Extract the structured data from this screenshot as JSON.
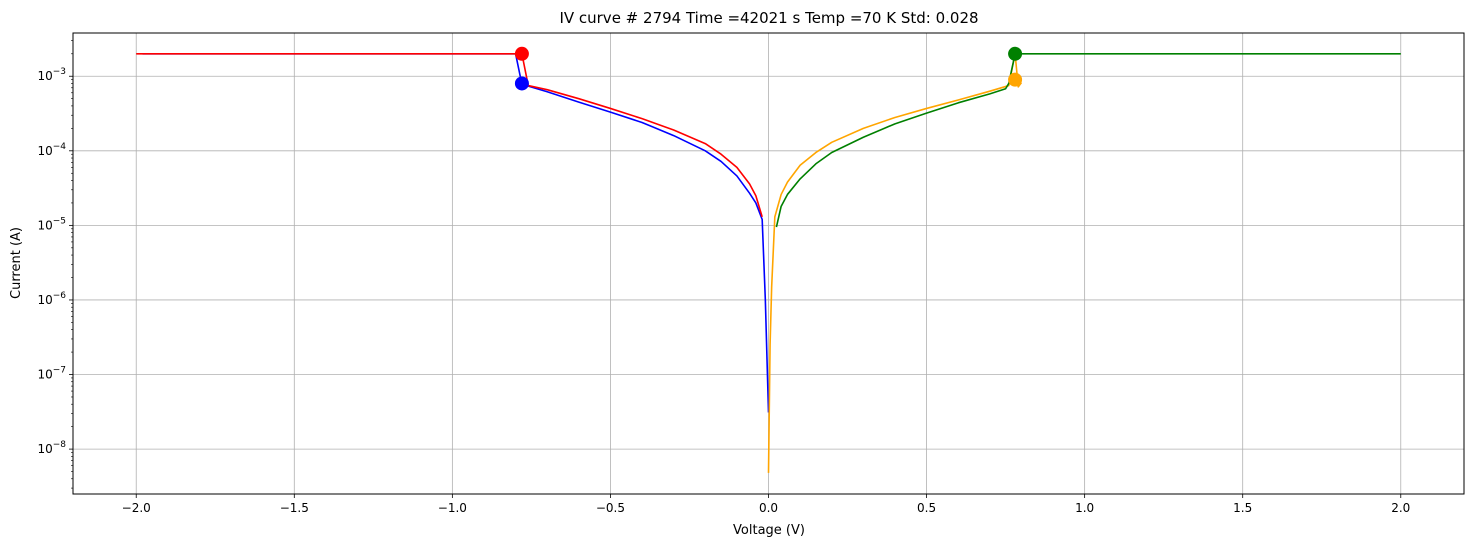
{
  "chart_data": {
    "type": "line",
    "title": "IV curve # 2794  Time =42021 s  Temp =70 K Std: 0.028",
    "xlabel": "Voltage (V)",
    "ylabel": "Current (A)",
    "xlim": [
      -2.2,
      2.2
    ],
    "ylim": [
      2.5e-09,
      0.0038
    ],
    "yscale": "log",
    "grid": true,
    "x_ticks": [
      {
        "value": -2.0,
        "label": "−2.0"
      },
      {
        "value": -1.5,
        "label": "−1.5"
      },
      {
        "value": -1.0,
        "label": "−1.0"
      },
      {
        "value": -0.5,
        "label": "−0.5"
      },
      {
        "value": 0.0,
        "label": "0.0"
      },
      {
        "value": 0.5,
        "label": "0.5"
      },
      {
        "value": 1.0,
        "label": "1.0"
      },
      {
        "value": 1.5,
        "label": "1.5"
      },
      {
        "value": 2.0,
        "label": "2.0"
      }
    ],
    "y_ticks": [
      {
        "value": 1e-08,
        "base": "10",
        "exp": "−8"
      },
      {
        "value": 1e-07,
        "base": "10",
        "exp": "−7"
      },
      {
        "value": 1e-06,
        "base": "10",
        "exp": "−6"
      },
      {
        "value": 1e-05,
        "base": "10",
        "exp": "−5"
      },
      {
        "value": 0.0001,
        "base": "10",
        "exp": "−4"
      },
      {
        "value": 0.001,
        "base": "10",
        "exp": "−3"
      }
    ],
    "series": [
      {
        "color": "#0000ff",
        "points": [
          [
            -1.98,
            0.002
          ],
          [
            -1.5,
            0.002
          ],
          [
            -1.0,
            0.002
          ],
          [
            -0.8,
            0.002
          ],
          [
            -0.78,
            0.00078
          ],
          [
            -0.7,
            0.00062
          ],
          [
            -0.6,
            0.00045
          ],
          [
            -0.5,
            0.00033
          ],
          [
            -0.4,
            0.00024
          ],
          [
            -0.3,
            0.00016
          ],
          [
            -0.2,
            0.0001
          ],
          [
            -0.15,
            7.2e-05
          ],
          [
            -0.1,
            4.6e-05
          ],
          [
            -0.06,
            2.7e-05
          ],
          [
            -0.04,
            2e-05
          ],
          [
            -0.02,
            1.2e-05
          ],
          [
            -0.01,
            1e-06
          ],
          [
            0.0,
            3.1e-08
          ]
        ]
      },
      {
        "color": "#ff0000",
        "points": [
          [
            -2.0,
            0.002
          ],
          [
            -1.5,
            0.002
          ],
          [
            -1.0,
            0.002
          ],
          [
            -0.78,
            0.002
          ],
          [
            -0.76,
            0.00075
          ],
          [
            -0.7,
            0.00066
          ],
          [
            -0.6,
            0.0005
          ],
          [
            -0.5,
            0.00037
          ],
          [
            -0.4,
            0.00027
          ],
          [
            -0.3,
            0.00019
          ],
          [
            -0.2,
            0.000125
          ],
          [
            -0.15,
            9e-05
          ],
          [
            -0.1,
            6e-05
          ],
          [
            -0.06,
            3.6e-05
          ],
          [
            -0.04,
            2.5e-05
          ],
          [
            -0.02,
            1.3e-05
          ]
        ]
      },
      {
        "color": "#ffa500",
        "points": [
          [
            0.0,
            4.8e-09
          ],
          [
            0.005,
            2.5e-07
          ],
          [
            0.01,
            1.5e-06
          ],
          [
            0.02,
            1.3e-05
          ],
          [
            0.04,
            2.6e-05
          ],
          [
            0.06,
            3.8e-05
          ],
          [
            0.1,
            6.4e-05
          ],
          [
            0.15,
            9.5e-05
          ],
          [
            0.2,
            0.00013
          ],
          [
            0.3,
            0.0002
          ],
          [
            0.4,
            0.00028
          ],
          [
            0.5,
            0.00037
          ],
          [
            0.6,
            0.00048
          ],
          [
            0.7,
            0.00063
          ],
          [
            0.76,
            0.00075
          ],
          [
            0.78,
            0.002
          ],
          [
            0.79,
            0.00072
          ],
          [
            0.8,
            0.00082
          ]
        ]
      },
      {
        "color": "#008000",
        "points": [
          [
            0.025,
            9.5e-06
          ],
          [
            0.04,
            1.8e-05
          ],
          [
            0.06,
            2.6e-05
          ],
          [
            0.1,
            4.2e-05
          ],
          [
            0.15,
            6.7e-05
          ],
          [
            0.2,
            9.5e-05
          ],
          [
            0.3,
            0.000152
          ],
          [
            0.4,
            0.00023
          ],
          [
            0.5,
            0.00032
          ],
          [
            0.6,
            0.00044
          ],
          [
            0.7,
            0.00058
          ],
          [
            0.75,
            0.00068
          ],
          [
            0.76,
            0.0008
          ],
          [
            0.78,
            0.002
          ],
          [
            1.0,
            0.002
          ],
          [
            1.5,
            0.002
          ],
          [
            2.0,
            0.002
          ]
        ]
      }
    ],
    "markers": [
      {
        "color": "#ff0000",
        "x": -0.78,
        "y": 0.002
      },
      {
        "color": "#0000ff",
        "x": -0.78,
        "y": 0.0008
      },
      {
        "color": "#008000",
        "x": 0.78,
        "y": 0.002
      },
      {
        "color": "#ffa500",
        "x": 0.78,
        "y": 0.0009
      }
    ]
  }
}
